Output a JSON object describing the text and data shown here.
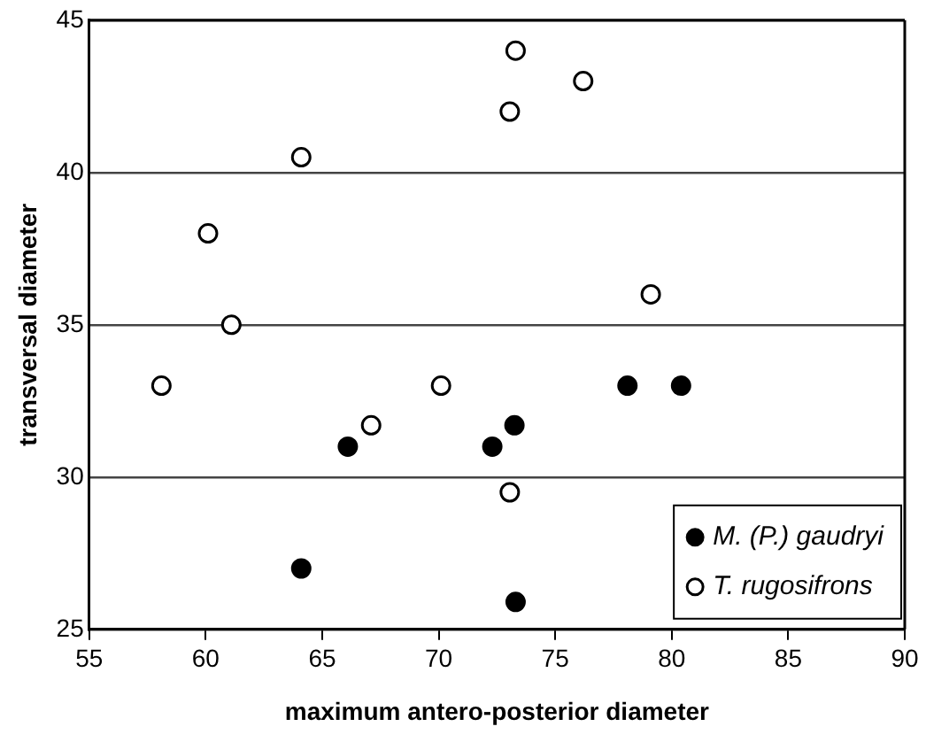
{
  "chart_data": {
    "type": "scatter",
    "xlabel": "maximum antero-posterior diameter",
    "ylabel": "transversal diameter",
    "xlim": [
      55,
      90
    ],
    "xticks": [
      55,
      60,
      65,
      70,
      75,
      80,
      85,
      90
    ],
    "ylim": [
      25,
      45
    ],
    "yticks": [
      25,
      30,
      35,
      40,
      45
    ],
    "grid": "y",
    "legend": "bottom right",
    "marker": "circle",
    "series": [
      {
        "name": "M. (P.) gaudryi",
        "color": "#000000",
        "x": [
          66.1,
          72.3,
          73.25,
          64.1,
          73.3,
          78.1,
          80.4
        ],
        "values": [
          31.0,
          31.0,
          31.7,
          27.0,
          25.9,
          33.0,
          33.0
        ]
      },
      {
        "name": "T. rugosifrons",
        "color": "#ffffff",
        "x": [
          73.3,
          73.05,
          64.1,
          60.1,
          61.1,
          58.1,
          70.1,
          67.1,
          73.05,
          76.2,
          79.1
        ],
        "values": [
          44.0,
          42.0,
          40.5,
          38.0,
          35.0,
          33.0,
          33.0,
          31.7,
          29.5,
          43.0,
          36.0
        ]
      }
    ]
  }
}
